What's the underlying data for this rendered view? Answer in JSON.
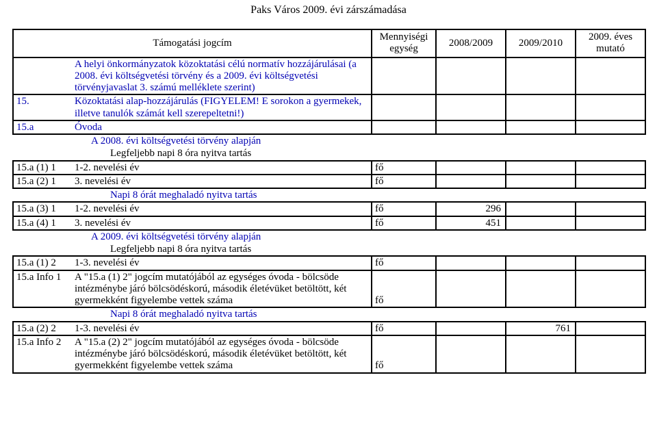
{
  "title": "Paks Város 2009. évi zárszámadása",
  "header": {
    "col1": "Támogatási jogcím",
    "col2": "Mennyiségi egység",
    "col3": "2008/2009",
    "col4": "2009/2010",
    "col5": "2009. éves mutató"
  },
  "rows": [
    {
      "type": "box",
      "code": "",
      "desc": "A helyi önkormányzatok közoktatási célú normatív hozzájárulásai (a 2008. évi költségvetési törvény és a 2009. évi költségvetési törvényjavaslat 3. számú melléklete szerint)",
      "blue": true,
      "unit": "",
      "y1": "",
      "y2": "",
      "y3": ""
    },
    {
      "type": "box",
      "code": "15.",
      "desc": "Közoktatási alap-hozzájárulás (FIGYELEM! E sorokon a gyermekek, illetve tanulók számát kell szerepeltetni!)",
      "blue": true,
      "unit": "",
      "y1": "",
      "y2": "",
      "y3": ""
    },
    {
      "type": "box",
      "code": "15.a",
      "desc": "Óvoda",
      "blue": true,
      "unit": "",
      "y1": "",
      "y2": "",
      "y3": ""
    },
    {
      "type": "plain",
      "code": "",
      "desc": "A 2008. évi költségvetési törvény alapján",
      "blue": true,
      "indent": 1
    },
    {
      "type": "plain",
      "code": "",
      "desc": "Legfeljebb napi 8 óra nyitva tartás",
      "indent": 2
    },
    {
      "type": "box",
      "code": "15.a (1) 1",
      "desc": "1-2. nevelési év",
      "unit": "fő",
      "y1": "",
      "y2": "",
      "y3": ""
    },
    {
      "type": "box",
      "code": "15.a (2) 1",
      "desc": "3. nevelési év",
      "unit": "fő",
      "y1": "",
      "y2": "",
      "y3": ""
    },
    {
      "type": "plain",
      "code": "",
      "desc": "Napi 8 órát meghaladó nyitva tartás",
      "blue": true,
      "indent": 2
    },
    {
      "type": "box",
      "code": "15.a (3) 1",
      "desc": "1-2. nevelési év",
      "unit": "fő",
      "y1": "296",
      "y2": "",
      "y3": ""
    },
    {
      "type": "box",
      "code": "15.a (4) 1",
      "desc": "3. nevelési év",
      "unit": "fő",
      "y1": "451",
      "y2": "",
      "y3": ""
    },
    {
      "type": "plain",
      "code": "",
      "desc": "A 2009. évi költségvetési törvény alapján",
      "blue": true,
      "indent": 1
    },
    {
      "type": "plain",
      "code": "",
      "desc": "Legfeljebb napi 8 óra nyitva tartás",
      "indent": 2
    },
    {
      "type": "box",
      "code": "15.a (1) 2",
      "desc": "1-3. nevelési év",
      "unit": "fő",
      "y1": "",
      "y2": "",
      "y3": ""
    },
    {
      "type": "box",
      "code": "15.a Info 1",
      "desc": "A \"15.a (1) 2\" jogcím mutatójából az egységes óvoda - bölcsöde intézménybe járó bölcsödéskorú, második életévüket betöltött, két gyermekként figyelembe vettek száma",
      "unit": "fő",
      "y1": "",
      "y2": "",
      "y3": "",
      "unitBottom": true
    },
    {
      "type": "plain",
      "code": "",
      "desc": "Napi 8 órát meghaladó nyitva tartás",
      "blue": true,
      "indent": 2
    },
    {
      "type": "box",
      "code": "15.a (2) 2",
      "desc": "1-3. nevelési év",
      "unit": "fő",
      "y1": "",
      "y2": "761",
      "y3": ""
    },
    {
      "type": "box",
      "code": "15.a Info 2",
      "desc": "A \"15.a (2) 2\" jogcím mutatójából az egységes óvoda - bölcsöde intézménybe járó bölcsödéskorú, második életévüket betöltött, két gyermekként figyelembe vettek száma",
      "unit": "fő",
      "y1": "",
      "y2": "",
      "y3": "",
      "unitBottom": true
    }
  ]
}
